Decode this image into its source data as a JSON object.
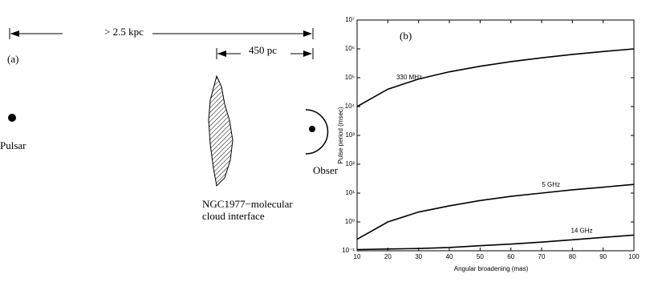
{
  "diagram": {
    "panel_label": "(a)",
    "distance_total": "> 2.5 kpc",
    "distance_cloud": "450 pc",
    "pulsar": "Pulsar",
    "cloud": [
      "NGC1977−molecular",
      "cloud interface"
    ],
    "observer": "Obser"
  },
  "chart_data": {
    "type": "line",
    "panel_label": "(b)",
    "x_label": "Angular broadening (mas)",
    "y_label": "Pulse period (msec)",
    "x": [
      10,
      20,
      30,
      40,
      50,
      60,
      70,
      80,
      90,
      100
    ],
    "series": [
      {
        "name": "330 MHz",
        "color": "#000000",
        "values": [
          10000,
          40000,
          90000,
          160000,
          250000,
          360000,
          490000,
          640000,
          810000,
          1000000
        ]
      },
      {
        "name": "5 GHz",
        "color": "#000000",
        "values": [
          0.25,
          1,
          2.2,
          3.6,
          5.5,
          7.7,
          10,
          13,
          16,
          20
        ]
      },
      {
        "name": "14 GHz",
        "color": "#000000",
        "values": [
          0.11,
          0.115,
          0.12,
          0.13,
          0.15,
          0.17,
          0.2,
          0.24,
          0.29,
          0.35
        ]
      }
    ],
    "xlim": [
      10,
      100
    ],
    "xticks": [
      10,
      20,
      30,
      40,
      50,
      60,
      70,
      80,
      90,
      100
    ],
    "ylim": [
      0.1,
      10000000
    ],
    "yscale": "log",
    "yticks": [
      {
        "value": 0.1,
        "label": "10⁻¹"
      },
      {
        "value": 1,
        "label": "10⁰"
      },
      {
        "value": 10,
        "label": "10¹"
      },
      {
        "value": 100,
        "label": "10²"
      },
      {
        "value": 1000,
        "label": "10³"
      },
      {
        "value": 10000,
        "label": "10⁴"
      },
      {
        "value": 100000,
        "label": "10⁵"
      },
      {
        "value": 1000000,
        "label": "10⁶"
      },
      {
        "value": 10000000,
        "label": "10⁷"
      }
    ],
    "grid": false
  }
}
